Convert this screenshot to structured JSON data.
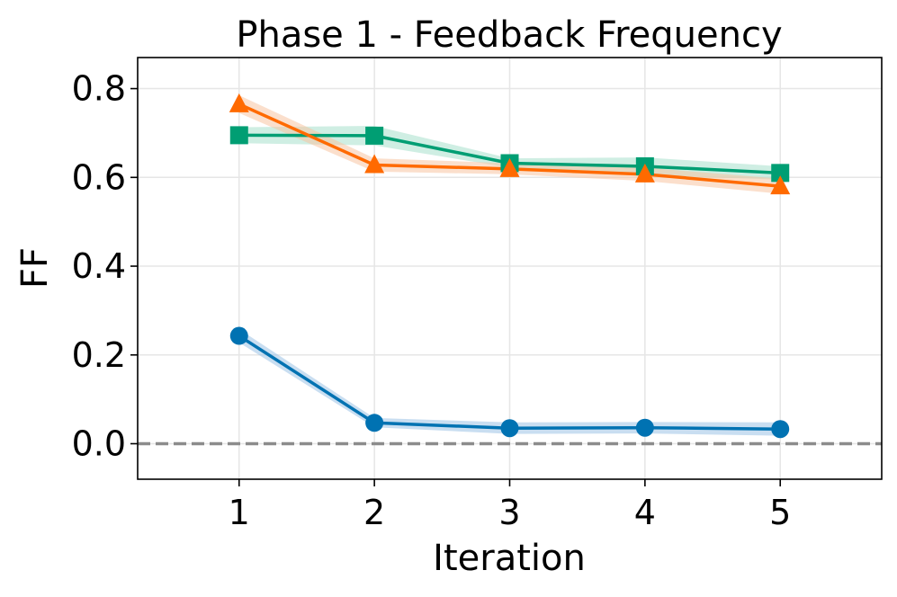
{
  "chart_data": {
    "type": "line",
    "title": "Phase 1 - Feedback Frequency",
    "xlabel": "Iteration",
    "ylabel": "FF",
    "x": [
      1,
      2,
      3,
      4,
      5
    ],
    "xlim": [
      0.25,
      5.75
    ],
    "ylim": [
      -0.08,
      0.87
    ],
    "xticks": [
      "1",
      "2",
      "3",
      "4",
      "5"
    ],
    "yticks": [
      "0.0",
      "0.2",
      "0.4",
      "0.6",
      "0.8"
    ],
    "ytick_values": [
      0.0,
      0.2,
      0.4,
      0.6,
      0.8
    ],
    "grid": true,
    "legend": "none",
    "reference_line": {
      "y": 0.0,
      "style": "dashed",
      "color": "#8c8c8c"
    },
    "series": [
      {
        "values": [
          0.243,
          0.047,
          0.035,
          0.036,
          0.033
        ],
        "band_low": [
          0.228,
          0.037,
          0.022,
          0.023,
          0.018
        ],
        "band_high": [
          0.258,
          0.058,
          0.048,
          0.049,
          0.048
        ],
        "color": "#0072b2",
        "band_color": "#9cc3e6",
        "marker": "circle"
      },
      {
        "values": [
          0.695,
          0.694,
          0.632,
          0.625,
          0.61
        ],
        "band_low": [
          0.677,
          0.672,
          0.622,
          0.605,
          0.595
        ],
        "band_high": [
          0.713,
          0.716,
          0.643,
          0.645,
          0.625
        ],
        "color": "#009e73",
        "band_color": "#a8e0cc",
        "marker": "square"
      },
      {
        "values": [
          0.765,
          0.628,
          0.619,
          0.607,
          0.58
        ],
        "band_low": [
          0.745,
          0.613,
          0.607,
          0.592,
          0.563
        ],
        "band_high": [
          0.785,
          0.643,
          0.632,
          0.622,
          0.597
        ],
        "color": "#ff6a00",
        "band_color": "#f8c4a3",
        "marker": "triangle"
      }
    ]
  }
}
